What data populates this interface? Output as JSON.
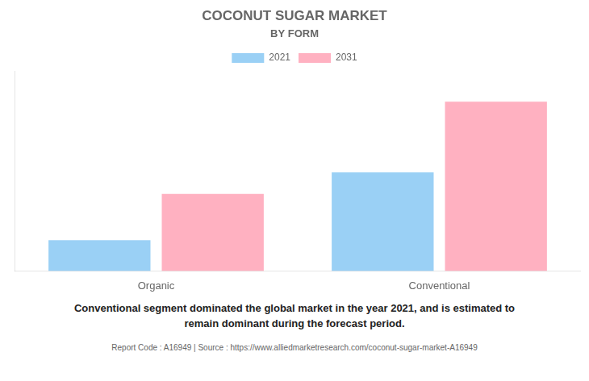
{
  "chart_data": {
    "type": "bar",
    "title": "COCONUT SUGAR MARKET",
    "subtitle": "BY FORM",
    "categories": [
      "Organic",
      "Conventional"
    ],
    "series": [
      {
        "name": "2021",
        "values": [
          1.0,
          3.2
        ]
      },
      {
        "name": "2031",
        "values": [
          2.5,
          5.5
        ]
      }
    ],
    "ylim": [
      0,
      6.5
    ],
    "yticks": [],
    "grid": false,
    "legend": "top",
    "tick_labels": "x",
    "annotations": [
      "Conventional segment dominated the global market in the year 2021, and is estimated to\nremain dominant during the forecast period.",
      "Report Code : A16949  |  Source : https://www.alliedmarketresearch.com/coconut-sugar-market-A16949"
    ]
  }
}
